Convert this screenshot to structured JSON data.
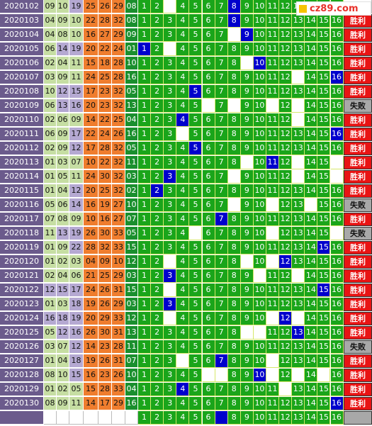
{
  "logo": {
    "text": "cz89.com"
  },
  "kill_numbers": [
    "1",
    "2",
    "3",
    "4",
    "5",
    "6",
    "7",
    "8",
    "9",
    "10",
    "11",
    "12",
    "13",
    "14",
    "15",
    "16"
  ],
  "rows": [
    {
      "period": "2020102",
      "reds": [
        "09",
        "10",
        "19",
        "25",
        "26",
        "29"
      ],
      "blue": "08",
      "kill": 8,
      "result": ""
    },
    {
      "period": "2020103",
      "reds": [
        "04",
        "09",
        "10",
        "22",
        "28",
        "32"
      ],
      "blue": "08",
      "kill": 8,
      "result": "胜利"
    },
    {
      "period": "2020104",
      "reds": [
        "04",
        "08",
        "10",
        "16",
        "27",
        "29"
      ],
      "blue": "09",
      "kill": 9,
      "result": "胜利"
    },
    {
      "period": "2020105",
      "reds": [
        "06",
        "14",
        "19",
        "20",
        "22",
        "24"
      ],
      "blue": "01",
      "kill": 1,
      "result": "胜利"
    },
    {
      "period": "2020106",
      "reds": [
        "02",
        "04",
        "11",
        "15",
        "18",
        "28"
      ],
      "blue": "10",
      "kill": 10,
      "result": "胜利"
    },
    {
      "period": "2020107",
      "reds": [
        "03",
        "09",
        "11",
        "24",
        "25",
        "28"
      ],
      "blue": "16",
      "kill": 16,
      "result": "胜利"
    },
    {
      "period": "2020108",
      "reds": [
        "10",
        "12",
        "15",
        "17",
        "23",
        "32"
      ],
      "blue": "05",
      "kill": 5,
      "result": "胜利"
    },
    {
      "period": "2020109",
      "reds": [
        "06",
        "13",
        "16",
        "20",
        "23",
        "32"
      ],
      "blue": "13",
      "kill": 0,
      "result": "失败"
    },
    {
      "period": "2020110",
      "reds": [
        "02",
        "06",
        "09",
        "14",
        "22",
        "25"
      ],
      "blue": "04",
      "kill": 4,
      "result": "胜利"
    },
    {
      "period": "2020111",
      "reds": [
        "06",
        "09",
        "17",
        "22",
        "24",
        "26"
      ],
      "blue": "16",
      "kill": 16,
      "result": "胜利"
    },
    {
      "period": "2020112",
      "reds": [
        "02",
        "09",
        "12",
        "17",
        "28",
        "32"
      ],
      "blue": "05",
      "kill": 5,
      "result": "胜利"
    },
    {
      "period": "2020113",
      "reds": [
        "01",
        "03",
        "07",
        "10",
        "22",
        "32"
      ],
      "blue": "11",
      "kill": 11,
      "result": "胜利"
    },
    {
      "period": "2020114",
      "reds": [
        "01",
        "05",
        "11",
        "24",
        "30",
        "32"
      ],
      "blue": "03",
      "kill": 3,
      "result": "胜利"
    },
    {
      "period": "2020115",
      "reds": [
        "01",
        "04",
        "12",
        "20",
        "25",
        "32"
      ],
      "blue": "02",
      "kill": 2,
      "result": "胜利"
    },
    {
      "period": "2020116",
      "reds": [
        "05",
        "06",
        "14",
        "16",
        "19",
        "27"
      ],
      "blue": "10",
      "kill": 0,
      "result": "失败"
    },
    {
      "period": "2020117",
      "reds": [
        "07",
        "08",
        "09",
        "10",
        "16",
        "27"
      ],
      "blue": "07",
      "kill": 7,
      "result": "胜利"
    },
    {
      "period": "2020118",
      "reds": [
        "11",
        "13",
        "19",
        "26",
        "30",
        "33"
      ],
      "blue": "05",
      "kill": 0,
      "result": "失败"
    },
    {
      "period": "2020119",
      "reds": [
        "01",
        "09",
        "22",
        "28",
        "32",
        "33"
      ],
      "blue": "15",
      "kill": 15,
      "result": "胜利"
    },
    {
      "period": "2020120",
      "reds": [
        "01",
        "02",
        "03",
        "04",
        "09",
        "10"
      ],
      "blue": "12",
      "kill": 12,
      "result": "胜利"
    },
    {
      "period": "2020121",
      "reds": [
        "02",
        "04",
        "06",
        "21",
        "25",
        "29"
      ],
      "blue": "03",
      "kill": 3,
      "result": "胜利"
    },
    {
      "period": "2020122",
      "reds": [
        "12",
        "15",
        "17",
        "24",
        "26",
        "31"
      ],
      "blue": "15",
      "kill": 15,
      "result": "胜利"
    },
    {
      "period": "2020123",
      "reds": [
        "01",
        "03",
        "18",
        "19",
        "26",
        "29"
      ],
      "blue": "03",
      "kill": 3,
      "result": "胜利"
    },
    {
      "period": "2020124",
      "reds": [
        "16",
        "18",
        "19",
        "20",
        "29",
        "33"
      ],
      "blue": "12",
      "kill": 12,
      "result": "胜利"
    },
    {
      "period": "2020125",
      "reds": [
        "05",
        "12",
        "16",
        "26",
        "30",
        "31"
      ],
      "blue": "13",
      "kill": 13,
      "result": "胜利"
    },
    {
      "period": "2020126",
      "reds": [
        "03",
        "07",
        "12",
        "14",
        "23",
        "28"
      ],
      "blue": "11",
      "kill": 0,
      "result": "失败"
    },
    {
      "period": "2020127",
      "reds": [
        "01",
        "04",
        "18",
        "19",
        "26",
        "31"
      ],
      "blue": "07",
      "kill": 7,
      "result": "胜利"
    },
    {
      "period": "2020128",
      "reds": [
        "08",
        "10",
        "15",
        "16",
        "23",
        "26"
      ],
      "blue": "10",
      "kill": 10,
      "result": "胜利"
    },
    {
      "period": "2020129",
      "reds": [
        "01",
        "02",
        "05",
        "15",
        "28",
        "33"
      ],
      "blue": "04",
      "kill": 4,
      "result": "胜利"
    },
    {
      "period": "2020130",
      "reds": [
        "08",
        "09",
        "11",
        "14",
        "17",
        "29"
      ],
      "blue": "16",
      "kill": 16,
      "result": "胜利"
    }
  ],
  "forecast_row": {
    "kill": 7
  },
  "blanks": [
    [
      3
    ],
    [],
    [
      8
    ],
    [
      3
    ],
    [
      9
    ],
    [
      13
    ],
    [],
    [
      6,
      8,
      11,
      13
    ],
    [
      13
    ],
    [
      4
    ],
    [],
    [
      9,
      13,
      16
    ],
    [
      8,
      13,
      16
    ],
    [],
    [
      8,
      11,
      14
    ],
    [],
    [
      5,
      11,
      16
    ],
    [],
    [
      3,
      9,
      11
    ],
    [
      10,
      13
    ],
    [
      3
    ],
    [],
    [
      3,
      11,
      13
    ],
    [
      9,
      10
    ],
    [],
    [
      4,
      7,
      11
    ],
    [
      6,
      7,
      11,
      13,
      15
    ],
    [
      12
    ],
    []
  ]
}
